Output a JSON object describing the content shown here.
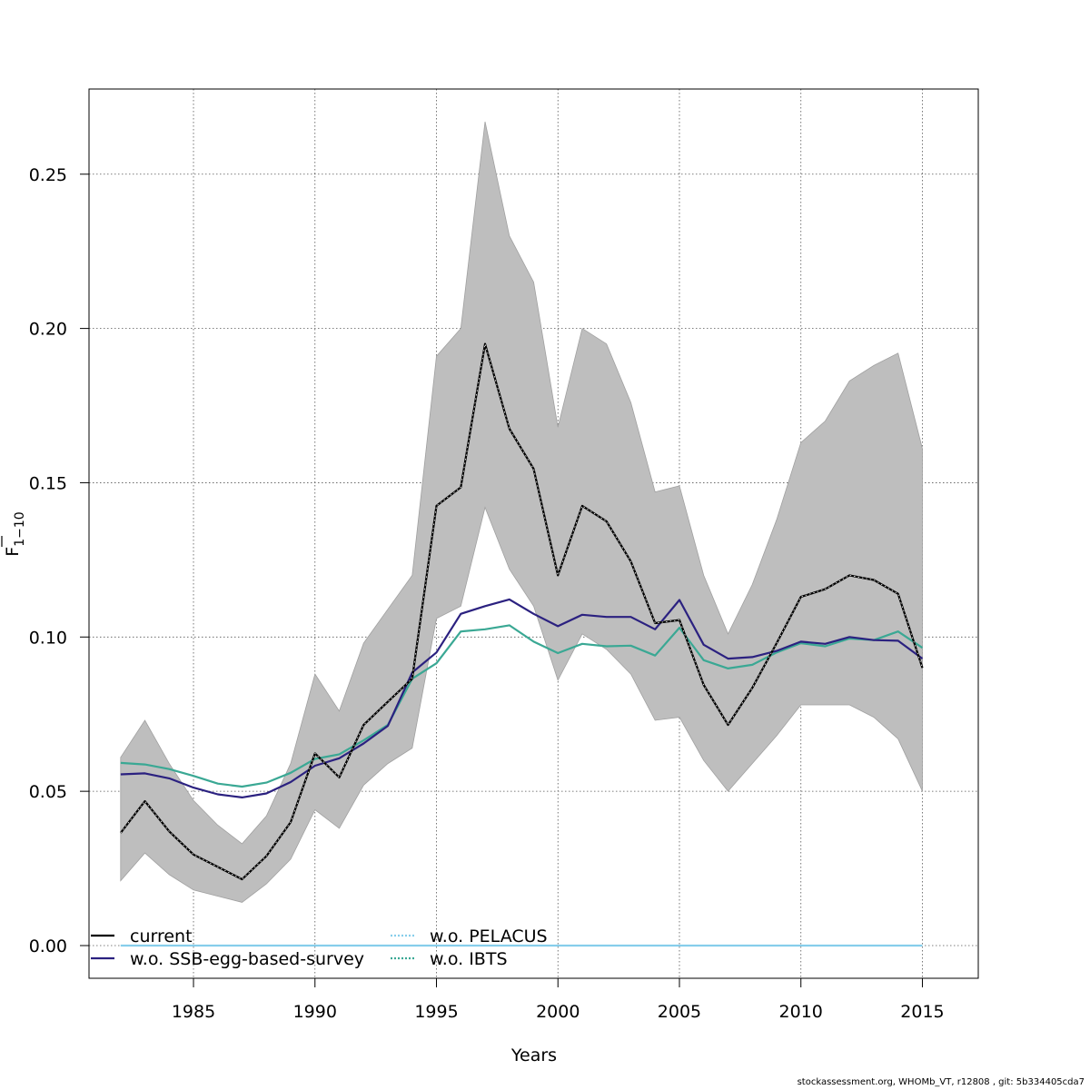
{
  "chart_data": {
    "type": "line",
    "xlabel": "Years",
    "ylabel": "F",
    "ylabel_sub": "1−10",
    "xlim": [
      1980.7,
      2017.3
    ],
    "ylim": [
      -0.0106,
      0.2776
    ],
    "xticks": [
      1985,
      1990,
      1995,
      2000,
      2005,
      2010,
      2015
    ],
    "yticks": [
      0.0,
      0.05,
      0.1,
      0.15,
      0.2,
      0.25
    ],
    "ytick_labels": [
      "0.00",
      "0.05",
      "0.10",
      "0.15",
      "0.20",
      "0.25"
    ],
    "grid": true,
    "legend_position": "bottom-left",
    "x": [
      1982,
      1983,
      1984,
      1985,
      1986,
      1987,
      1988,
      1989,
      1990,
      1991,
      1992,
      1993,
      1994,
      1995,
      1996,
      1997,
      1998,
      1999,
      2000,
      2001,
      2002,
      2003,
      2004,
      2005,
      2006,
      2007,
      2008,
      2009,
      2010,
      2011,
      2012,
      2013,
      2014,
      2015
    ],
    "confidence_band": {
      "color": "#bebebe",
      "lower": [
        0.021,
        0.03,
        0.023,
        0.018,
        0.016,
        0.014,
        0.02,
        0.028,
        0.044,
        0.038,
        0.052,
        0.059,
        0.064,
        0.106,
        0.11,
        0.142,
        0.122,
        0.11,
        0.086,
        0.101,
        0.096,
        0.088,
        0.073,
        0.074,
        0.06,
        0.05,
        0.059,
        0.068,
        0.078,
        0.078,
        0.078,
        0.074,
        0.067,
        0.05
      ],
      "upper": [
        0.061,
        0.073,
        0.059,
        0.047,
        0.039,
        0.033,
        0.042,
        0.059,
        0.088,
        0.076,
        0.098,
        0.109,
        0.12,
        0.191,
        0.2,
        0.267,
        0.23,
        0.215,
        0.168,
        0.2,
        0.195,
        0.176,
        0.147,
        0.149,
        0.12,
        0.101,
        0.117,
        0.138,
        0.163,
        0.17,
        0.183,
        0.188,
        0.192,
        0.161
      ]
    },
    "series": [
      {
        "name": "current",
        "color": "#000000",
        "values": [
          0.0365,
          0.0468,
          0.037,
          0.0295,
          0.0255,
          0.0215,
          0.029,
          0.04,
          0.0623,
          0.0545,
          0.0715,
          0.079,
          0.0865,
          0.1425,
          0.1485,
          0.195,
          0.1675,
          0.1545,
          0.12,
          0.1425,
          0.1375,
          0.1245,
          0.1045,
          0.1055,
          0.0845,
          0.0715,
          0.0835,
          0.098,
          0.113,
          0.1155,
          0.12,
          0.1185,
          0.114,
          0.09
        ]
      },
      {
        "name": "w.o. SSB-egg-based-survey",
        "color": "#2b2180",
        "values": [
          0.0555,
          0.0558,
          0.0542,
          0.0512,
          0.049,
          0.048,
          0.0493,
          0.053,
          0.0583,
          0.0607,
          0.0655,
          0.0712,
          0.0885,
          0.095,
          0.1075,
          0.11,
          0.1122,
          0.1075,
          0.1035,
          0.1072,
          0.1065,
          0.1065,
          0.1025,
          0.112,
          0.0975,
          0.093,
          0.0935,
          0.0955,
          0.0985,
          0.0978,
          0.1,
          0.099,
          0.0988,
          0.093
        ]
      },
      {
        "name": "w.o. PELACUS",
        "color": "#87ceeb",
        "values": [
          0,
          0,
          0,
          0,
          0,
          0,
          0,
          0,
          0,
          0,
          0,
          0,
          0,
          0,
          0,
          0,
          0,
          0,
          0,
          0,
          0,
          0,
          0,
          0,
          0,
          0,
          0,
          0,
          0,
          0,
          0,
          0,
          0,
          0
        ]
      },
      {
        "name": "w.o. IBTS",
        "color": "#3aa894",
        "values": [
          0.0592,
          0.0587,
          0.0572,
          0.055,
          0.0525,
          0.0515,
          0.0528,
          0.056,
          0.0605,
          0.062,
          0.0665,
          0.0715,
          0.0865,
          0.0915,
          0.1018,
          0.1025,
          0.1038,
          0.0985,
          0.0948,
          0.0978,
          0.097,
          0.0972,
          0.094,
          0.103,
          0.0925,
          0.0898,
          0.091,
          0.095,
          0.098,
          0.097,
          0.0995,
          0.099,
          0.1018,
          0.0965
        ]
      }
    ]
  },
  "legend": [
    {
      "label": "current",
      "color": "#000000",
      "style": "solid"
    },
    {
      "label": "w.o. SSB-egg-based-survey",
      "color": "#2b2180",
      "style": "solid"
    },
    {
      "label": "w.o. PELACUS",
      "color": "#87ceeb",
      "style": "dotted"
    },
    {
      "label": "w.o. IBTS",
      "color": "#3aa894",
      "style": "dotted"
    }
  ],
  "footer": "stockassessment.org, WHOMb_VT, r12808 , git: 5b334405cda7"
}
